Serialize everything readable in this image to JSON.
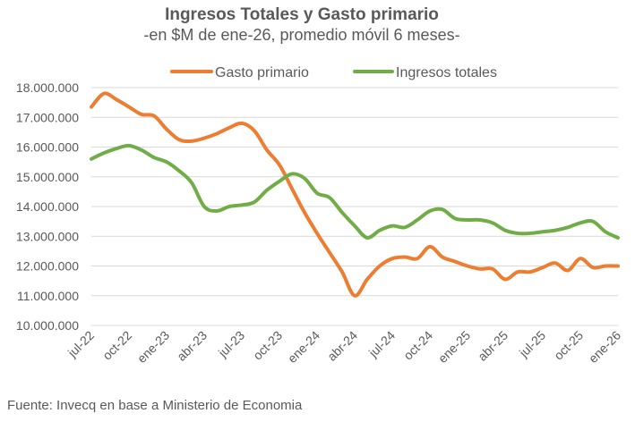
{
  "chart_data": {
    "type": "line",
    "title": "Ingresos Totales y Gasto primario",
    "subtitle": "-en $M de ene-26, promedio móvil 6 meses-",
    "source": "Fuente: Invecq en base a Ministerio de Economia",
    "ylim": [
      10000000,
      18000000
    ],
    "yticks": [
      10000000,
      11000000,
      12000000,
      13000000,
      14000000,
      15000000,
      16000000,
      17000000,
      18000000
    ],
    "ytick_labels": [
      "10.000.000",
      "11.000.000",
      "12.000.000",
      "13.000.000",
      "14.000.000",
      "15.000.000",
      "16.000.000",
      "17.000.000",
      "18.000.000"
    ],
    "x": [
      "jul-22",
      "ago-22",
      "sep-22",
      "oct-22",
      "nov-22",
      "dic-22",
      "ene-23",
      "feb-23",
      "mar-23",
      "abr-23",
      "may-23",
      "jun-23",
      "jul-23",
      "ago-23",
      "sep-23",
      "oct-23",
      "nov-23",
      "dic-23",
      "ene-24",
      "feb-24",
      "mar-24",
      "abr-24",
      "may-24",
      "jun-24",
      "jul-24",
      "ago-24",
      "sep-24",
      "oct-24",
      "nov-24",
      "dic-24",
      "ene-25",
      "feb-25",
      "mar-25",
      "abr-25",
      "may-25",
      "jun-25",
      "jul-25",
      "ago-25",
      "sep-25",
      "oct-25",
      "nov-25",
      "dic-25",
      "ene-26"
    ],
    "xtick_labels": [
      "jul-22",
      "oct-22",
      "ene-23",
      "abr-23",
      "jul-23",
      "oct-23",
      "ene-24",
      "abr-24",
      "jul-24",
      "oct-24",
      "ene-25",
      "abr-25",
      "jul-25",
      "oct-25",
      "ene-26"
    ],
    "series": [
      {
        "name": "Gasto primario",
        "color": "#ed7d31",
        "values": [
          17350000,
          17800000,
          17600000,
          17350000,
          17100000,
          17050000,
          16600000,
          16250000,
          16200000,
          16300000,
          16450000,
          16650000,
          16800000,
          16550000,
          15900000,
          15400000,
          14600000,
          13800000,
          13100000,
          12450000,
          11800000,
          11000000,
          11550000,
          12000000,
          12250000,
          12300000,
          12250000,
          12650000,
          12300000,
          12150000,
          12000000,
          11900000,
          11900000,
          11550000,
          11800000,
          11800000,
          11950000,
          12100000,
          11850000,
          12250000,
          11950000,
          12000000,
          12000000
        ]
      },
      {
        "name": "Ingresos totales",
        "color": "#70ad47",
        "values": [
          15600000,
          15800000,
          15950000,
          16050000,
          15900000,
          15650000,
          15500000,
          15200000,
          14800000,
          14000000,
          13850000,
          14000000,
          14050000,
          14150000,
          14550000,
          14850000,
          15100000,
          14950000,
          14450000,
          14300000,
          13800000,
          13350000,
          12950000,
          13200000,
          13350000,
          13300000,
          13550000,
          13850000,
          13900000,
          13600000,
          13550000,
          13550000,
          13450000,
          13200000,
          13100000,
          13100000,
          13150000,
          13200000,
          13300000,
          13450000,
          13500000,
          13150000,
          12950000
        ]
      }
    ]
  }
}
